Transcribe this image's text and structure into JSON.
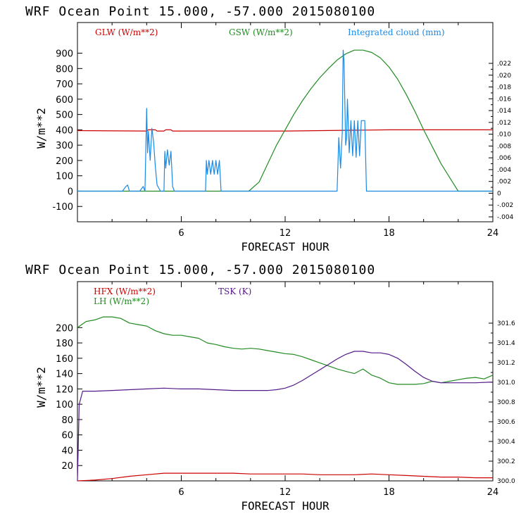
{
  "chart_data": [
    {
      "type": "line",
      "title": "WRF   Ocean Point   15.000, -57.000  2015080100",
      "xlabel": "FORECAST HOUR",
      "ylabel": "W/m**2",
      "xlim": [
        0,
        24
      ],
      "ylim": [
        -200,
        1100
      ],
      "xticks": [
        "6",
        "12",
        "18",
        "24"
      ],
      "yticks": [
        "-100",
        "0",
        "100",
        "200",
        "300",
        "400",
        "500",
        "600",
        "700",
        "800",
        "900"
      ],
      "right_axis": {
        "label": "Integrated cloud (mm)",
        "ticks": [
          "-.004",
          "-.002",
          "0",
          ".002",
          ".004",
          ".006",
          ".008",
          ".010",
          ".012",
          ".014",
          ".016",
          ".018",
          ".020",
          ".022"
        ]
      },
      "series": [
        {
          "name": "GLW (W/m**2)",
          "color": "#cc0000",
          "x": [
            0,
            4,
            4.1,
            4.5,
            4.6,
            5,
            5.1,
            5.4,
            5.5,
            12,
            18,
            24
          ],
          "y": [
            395,
            392,
            400,
            400,
            392,
            392,
            400,
            400,
            392,
            392,
            400,
            400
          ]
        },
        {
          "name": "GSW (W/m**2)",
          "color": "#228b22",
          "x": [
            0,
            9.9,
            10.5,
            11,
            11.5,
            12,
            12.5,
            13,
            13.5,
            14,
            14.5,
            15,
            15.5,
            16,
            16.5,
            17,
            17.5,
            18,
            18.5,
            19,
            19.5,
            20,
            20.5,
            21,
            21.5,
            22,
            24
          ],
          "y": [
            0,
            0,
            60,
            180,
            300,
            400,
            500,
            590,
            670,
            740,
            800,
            855,
            895,
            920,
            920,
            905,
            870,
            810,
            730,
            630,
            520,
            400,
            290,
            180,
            90,
            0,
            0
          ]
        },
        {
          "name": "Integrated cloud (mm)",
          "color": "#1a8ae6",
          "x": [
            0,
            2.6,
            2.8,
            2.9,
            3.0,
            3.6,
            3.8,
            3.9,
            4.0,
            4.05,
            4.1,
            4.2,
            4.3,
            4.4,
            4.5,
            4.6,
            4.8,
            5.0,
            5.05,
            5.1,
            5.2,
            5.3,
            5.4,
            5.5,
            5.6,
            7.4,
            7.45,
            7.5,
            7.6,
            7.7,
            7.8,
            7.9,
            8.0,
            8.1,
            8.2,
            8.25,
            8.3,
            15.0,
            15.1,
            15.2,
            15.3,
            15.35,
            15.4,
            15.5,
            15.55,
            15.6,
            15.7,
            15.8,
            15.9,
            16.0,
            16.1,
            16.2,
            16.3,
            16.4,
            16.5,
            16.6,
            16.7,
            24
          ],
          "y": [
            0,
            0,
            30,
            40,
            0,
            0,
            30,
            0,
            540,
            250,
            390,
            200,
            410,
            320,
            160,
            40,
            0,
            0,
            260,
            150,
            270,
            170,
            260,
            30,
            0,
            0,
            200,
            110,
            200,
            110,
            200,
            110,
            200,
            110,
            200,
            100,
            0,
            0,
            350,
            150,
            380,
            920,
            850,
            300,
            350,
            600,
            250,
            460,
            230,
            460,
            220,
            460,
            230,
            460,
            460,
            460,
            0,
            0
          ]
        }
      ]
    },
    {
      "type": "line",
      "title": "WRF   Ocean Point   15.000, -57.000  2015080100",
      "xlabel": "FORECAST HOUR",
      "ylabel": "W/m**2",
      "xlim": [
        0,
        24
      ],
      "ylim": [
        0,
        260
      ],
      "xticks": [
        "6",
        "12",
        "18",
        "24"
      ],
      "yticks": [
        "20",
        "40",
        "60",
        "80",
        "100",
        "120",
        "140",
        "160",
        "180",
        "200"
      ],
      "right_axis": {
        "label": "TSK (K)",
        "ticks": [
          "300.0",
          "300.2",
          "300.4",
          "300.6",
          "300.8",
          "301.0",
          "301.2",
          "301.4",
          "301.6"
        ]
      },
      "series": [
        {
          "name": "HFX (W/m**2)",
          "color": "#cc0000",
          "x": [
            0,
            1,
            2,
            3,
            4,
            5,
            6,
            7,
            8,
            9,
            10,
            11,
            12,
            13,
            14,
            15,
            16,
            17,
            18,
            19,
            20,
            21,
            22,
            23,
            24
          ],
          "y": [
            0,
            1,
            3,
            6,
            8,
            10,
            10,
            10,
            10,
            10,
            9,
            9,
            9,
            9,
            8,
            8,
            8,
            9,
            8,
            7,
            6,
            5,
            5,
            4,
            4
          ]
        },
        {
          "name": "LH (W/m**2)",
          "color": "#228b22",
          "x": [
            0,
            0.5,
            1,
            1.5,
            2,
            2.5,
            3,
            3.5,
            4,
            4.5,
            5,
            5.5,
            6,
            6.5,
            7,
            7.5,
            8,
            8.5,
            9,
            9.5,
            10,
            10.5,
            11,
            11.5,
            12,
            12.5,
            13,
            13.5,
            14,
            14.5,
            15,
            15.5,
            16,
            16.5,
            17,
            17.5,
            18,
            18.5,
            19,
            19.5,
            20,
            20.5,
            21,
            21.5,
            22,
            22.5,
            23,
            23.5,
            24
          ],
          "y": [
            200,
            208,
            210,
            214,
            214,
            212,
            206,
            204,
            202,
            196,
            192,
            190,
            190,
            188,
            186,
            180,
            178,
            175,
            173,
            172,
            173,
            172,
            170,
            168,
            166,
            165,
            162,
            158,
            154,
            150,
            146,
            143,
            140,
            146,
            138,
            134,
            128,
            126,
            126,
            126,
            127,
            130,
            128,
            130,
            132,
            134,
            135,
            133,
            138
          ]
        },
        {
          "name": "TSK (K)",
          "color": "#551a8b",
          "x": [
            0,
            0.1,
            0.3,
            1,
            2,
            3,
            4,
            5,
            6,
            7,
            8,
            9,
            10,
            11,
            11.5,
            12,
            12.5,
            13,
            13.5,
            14,
            14.5,
            15,
            15.5,
            16,
            16.5,
            17,
            17.5,
            18,
            18.5,
            19,
            19.5,
            20,
            20.5,
            21,
            22,
            23,
            24
          ],
          "y": [
            0,
            100,
            117,
            117,
            118,
            119,
            120,
            121,
            120,
            120,
            119,
            118,
            118,
            118,
            119,
            121,
            125,
            131,
            138,
            145,
            152,
            159,
            165,
            169,
            169,
            167,
            167,
            165,
            160,
            152,
            143,
            135,
            130,
            128,
            128,
            128,
            129
          ]
        }
      ]
    }
  ]
}
